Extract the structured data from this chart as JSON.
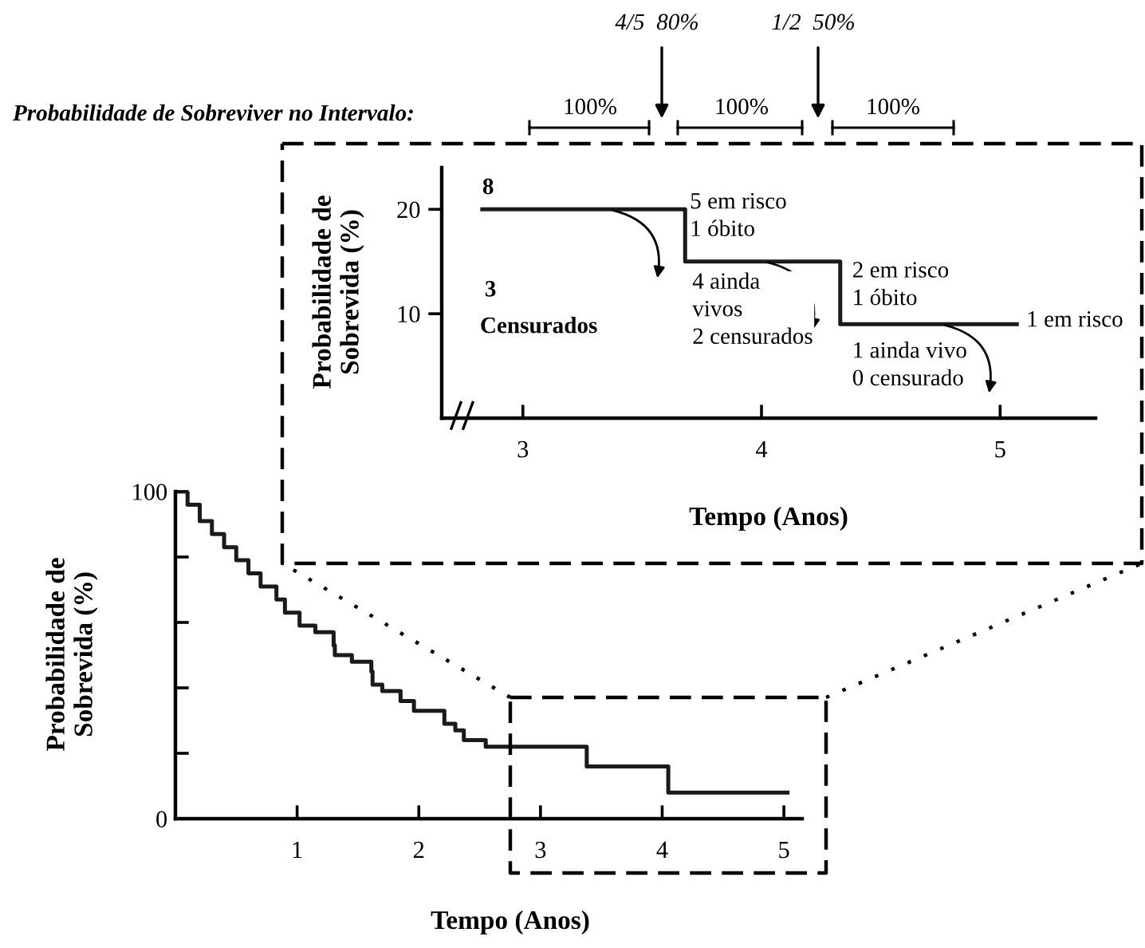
{
  "chart_data": [
    {
      "type": "step",
      "xlabel": "Tempo (Anos)",
      "ylabel": "Probabilidade de\nSobrevida (%)",
      "series": [
        {
          "color": "#1a1a1a",
          "x": [
            2.83,
            3.68,
            4.33,
            5.07
          ],
          "values": [
            20,
            15,
            9,
            9
          ]
        }
      ],
      "xlim": [
        2.66,
        5.4
      ],
      "xticks": [
        3,
        4,
        5
      ],
      "ylim": [
        0,
        24
      ],
      "yticks": [
        10,
        20
      ],
      "grid": false,
      "annotations": [
        "Probabilidade de Sobreviver no Intervalo:",
        "100%",
        "100%",
        "100%",
        "4/5  80%",
        "1/2  50%",
        "8",
        "3",
        "Censurados",
        "5 em risco\n1 óbito",
        "4 ainda\nvivos\n2 censurados",
        "2 em risco\n1 óbito",
        "1 em risco",
        "1 ainda vivo\n0 censurado"
      ]
    },
    {
      "type": "step",
      "xlabel": "Tempo (Anos)",
      "ylabel": "Probabilidade de\nSobrevida (%)",
      "series": [
        {
          "color": "#1a1a1a",
          "x": [
            0,
            0.1,
            0.2,
            0.3,
            0.4,
            0.5,
            0.6,
            0.7,
            0.83,
            0.9,
            1.02,
            1.15,
            1.3,
            1.31,
            1.45,
            1.61,
            1.62,
            1.7,
            1.85,
            1.96,
            2.2,
            2.21,
            2.3,
            2.37,
            2.55,
            3.38,
            4.05,
            5.03
          ],
          "values": [
            100,
            96,
            91,
            87,
            83,
            79,
            75,
            71,
            67,
            63,
            59,
            57,
            53,
            50,
            48,
            45,
            41,
            39,
            36,
            33,
            33,
            29,
            27,
            24,
            22,
            16,
            8,
            8
          ]
        }
      ],
      "xlim": [
        0,
        5.15
      ],
      "xticks": [
        1,
        2,
        3,
        4,
        5
      ],
      "ylim": [
        0,
        100
      ],
      "yticks": [
        0,
        {
          "value": 20,
          "label": null
        },
        {
          "value": 40,
          "label": null
        },
        {
          "value": 60,
          "label": null
        },
        {
          "value": 80,
          "label": null
        },
        100
      ],
      "grid": false
    }
  ]
}
